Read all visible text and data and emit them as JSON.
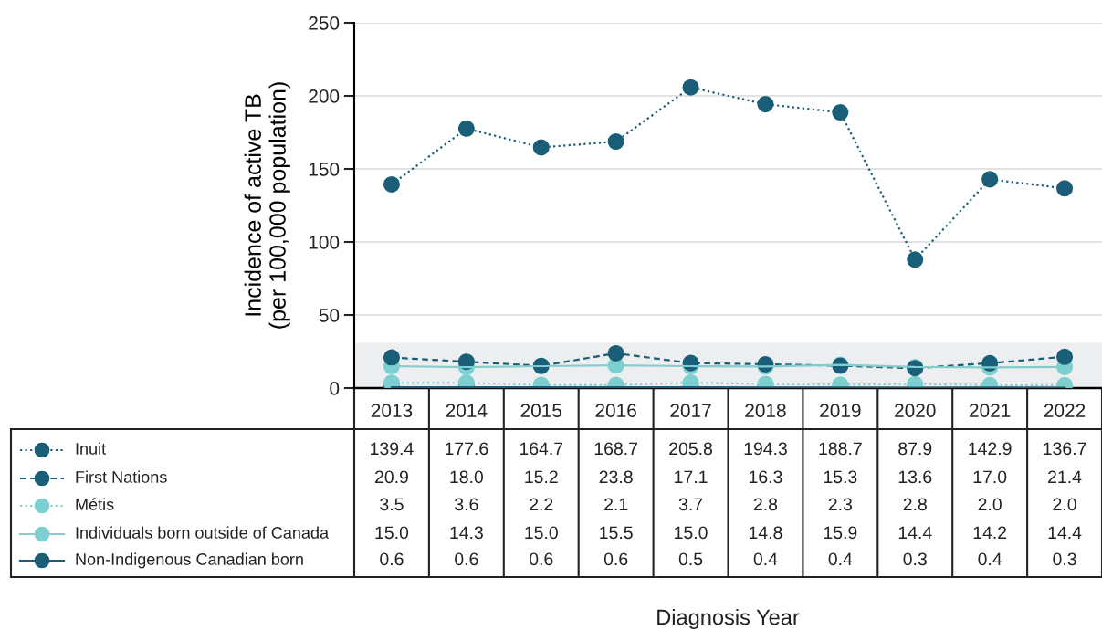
{
  "chart_data": {
    "type": "line",
    "annotations": [
      "Diagnosis Year"
    ],
    "legend": "bottom left",
    "ylabel": "Incidence of active TB\n(per 100,000 population)",
    "categories": [
      "2013",
      "2014",
      "2015",
      "2016",
      "2017",
      "2018",
      "2019",
      "2020",
      "2021",
      "2022"
    ],
    "ylim": [
      0,
      250
    ],
    "yticks": [
      0,
      50,
      100,
      150,
      200,
      250
    ],
    "grid": "y",
    "marker": "circle",
    "bands": [
      {
        "axis": "y",
        "from": 0,
        "to": 31,
        "color": "#eceeef"
      }
    ],
    "series": [
      {
        "name": "Inuit",
        "color": "#1a5e78",
        "line_style": "dotted",
        "values": [
          139.4,
          177.6,
          164.7,
          168.7,
          205.8,
          194.3,
          188.7,
          87.9,
          142.9,
          136.7
        ],
        "value_labels": [
          "139.4",
          "177.6",
          "164.7",
          "168.7",
          "205.8",
          "194.3",
          "188.7",
          "87.9",
          "142.9",
          "136.7"
        ]
      },
      {
        "name": "First Nations",
        "color": "#1a5e78",
        "line_style": "dashed",
        "values": [
          20.9,
          18.0,
          15.2,
          23.8,
          17.1,
          16.3,
          15.3,
          13.6,
          17.0,
          21.4
        ],
        "value_labels": [
          "20.9",
          "18.0",
          "15.2",
          "23.8",
          "17.1",
          "16.3",
          "15.3",
          "13.6",
          "17.0",
          "21.4"
        ]
      },
      {
        "name": "Métis",
        "color": "#7ecfd0",
        "line_style": "dotted",
        "values": [
          3.5,
          3.6,
          2.2,
          2.1,
          3.7,
          2.8,
          2.3,
          2.8,
          2.0,
          2.0
        ],
        "value_labels": [
          "3.5",
          "3.6",
          "2.2",
          "2.1",
          "3.7",
          "2.8",
          "2.3",
          "2.8",
          "2.0",
          "2.0"
        ]
      },
      {
        "name": "Individuals born outside of Canada",
        "color": "#7ecfd0",
        "line_style": "solid",
        "values": [
          15.0,
          14.3,
          15.0,
          15.5,
          15.0,
          14.8,
          15.9,
          14.4,
          14.2,
          14.4
        ],
        "value_labels": [
          "15.0",
          "14.3",
          "15.0",
          "15.5",
          "15.0",
          "14.8",
          "15.9",
          "14.4",
          "14.2",
          "14.4"
        ]
      },
      {
        "name": "Non-Indigenous Canadian born",
        "color": "#1a5e78",
        "line_style": "solid",
        "values": [
          0.6,
          0.6,
          0.6,
          0.6,
          0.5,
          0.4,
          0.4,
          0.3,
          0.4,
          0.3
        ],
        "value_labels": [
          "0.6",
          "0.6",
          "0.6",
          "0.6",
          "0.5",
          "0.4",
          "0.4",
          "0.3",
          "0.4",
          "0.3"
        ]
      }
    ]
  }
}
